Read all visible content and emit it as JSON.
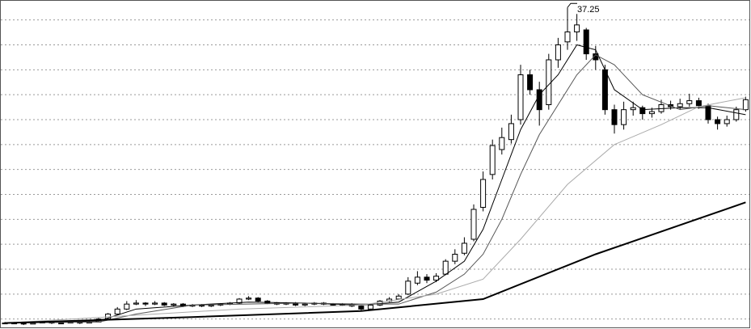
{
  "chart_data": {
    "type": "candlestick",
    "ylim": [
      5,
      38
    ],
    "yticks": [
      36,
      33.5,
      31,
      28.5,
      26,
      23.5,
      21,
      18.5,
      16,
      13.5,
      11,
      8.5,
      6
    ],
    "grid": true,
    "up_color": "#ffffff",
    "down_color": "#000000",
    "edge_color": "#000000",
    "ohlc": [
      [
        5.6,
        5.7,
        5.5,
        5.6
      ],
      [
        5.6,
        5.7,
        5.5,
        5.6
      ],
      [
        5.6,
        5.6,
        5.4,
        5.5
      ],
      [
        5.5,
        5.7,
        5.5,
        5.6
      ],
      [
        5.6,
        5.8,
        5.6,
        5.7
      ],
      [
        5.7,
        5.7,
        5.5,
        5.6
      ],
      [
        5.6,
        5.7,
        5.5,
        5.6
      ],
      [
        5.6,
        5.8,
        5.6,
        5.7
      ],
      [
        5.7,
        5.7,
        5.5,
        5.6
      ],
      [
        5.6,
        5.8,
        5.6,
        5.7
      ],
      [
        5.7,
        6.1,
        5.7,
        6.0
      ],
      [
        6.0,
        6.6,
        5.9,
        6.5
      ],
      [
        6.5,
        7.2,
        6.4,
        7.0
      ],
      [
        7.0,
        7.8,
        6.9,
        7.5
      ],
      [
        7.5,
        7.9,
        7.4,
        7.6
      ],
      [
        7.6,
        7.7,
        7.3,
        7.5
      ],
      [
        7.5,
        7.8,
        7.4,
        7.6
      ],
      [
        7.6,
        7.7,
        7.3,
        7.4
      ],
      [
        7.4,
        7.6,
        7.3,
        7.5
      ],
      [
        7.5,
        7.6,
        7.2,
        7.3
      ],
      [
        7.3,
        7.5,
        7.2,
        7.4
      ],
      [
        7.4,
        7.5,
        7.2,
        7.3
      ],
      [
        7.3,
        7.5,
        7.2,
        7.4
      ],
      [
        7.4,
        7.6,
        7.3,
        7.5
      ],
      [
        7.5,
        7.7,
        7.4,
        7.6
      ],
      [
        7.6,
        8.1,
        7.5,
        8.0
      ],
      [
        8.0,
        8.3,
        7.9,
        8.1
      ],
      [
        8.1,
        8.2,
        7.7,
        7.8
      ],
      [
        7.8,
        7.9,
        7.5,
        7.6
      ],
      [
        7.6,
        7.7,
        7.4,
        7.5
      ],
      [
        7.5,
        7.7,
        7.4,
        7.6
      ],
      [
        7.6,
        7.7,
        7.3,
        7.4
      ],
      [
        7.4,
        7.6,
        7.3,
        7.5
      ],
      [
        7.5,
        7.7,
        7.4,
        7.6
      ],
      [
        7.6,
        7.7,
        7.4,
        7.5
      ],
      [
        7.5,
        7.6,
        7.3,
        7.4
      ],
      [
        7.4,
        7.6,
        7.3,
        7.5
      ],
      [
        7.5,
        7.6,
        7.2,
        7.3
      ],
      [
        7.3,
        7.4,
        6.8,
        7.0
      ],
      [
        7.0,
        7.5,
        6.9,
        7.4
      ],
      [
        7.4,
        7.9,
        7.3,
        7.8
      ],
      [
        7.8,
        8.2,
        7.7,
        8.0
      ],
      [
        8.0,
        8.5,
        7.9,
        8.3
      ],
      [
        8.5,
        10.2,
        8.4,
        9.8
      ],
      [
        9.6,
        10.8,
        9.4,
        10.2
      ],
      [
        10.2,
        10.5,
        9.6,
        9.9
      ],
      [
        9.9,
        10.6,
        9.7,
        10.3
      ],
      [
        10.5,
        12.0,
        10.4,
        11.8
      ],
      [
        11.8,
        13.0,
        11.5,
        12.5
      ],
      [
        12.6,
        14.2,
        12.4,
        13.6
      ],
      [
        14.0,
        17.5,
        13.8,
        17.0
      ],
      [
        17.2,
        20.8,
        16.8,
        20.0
      ],
      [
        20.5,
        24.0,
        20.0,
        23.4
      ],
      [
        23.0,
        25.2,
        22.5,
        24.2
      ],
      [
        24.0,
        26.5,
        23.6,
        25.6
      ],
      [
        26.0,
        31.5,
        25.5,
        30.5
      ],
      [
        30.5,
        31.0,
        28.5,
        29.0
      ],
      [
        29.0,
        29.8,
        25.4,
        27.0
      ],
      [
        27.5,
        32.6,
        27.0,
        32.0
      ],
      [
        32.0,
        34.2,
        31.2,
        33.5
      ],
      [
        33.8,
        37.25,
        33.0,
        34.8
      ],
      [
        34.8,
        36.6,
        33.9,
        35.5
      ],
      [
        35.0,
        35.2,
        32.0,
        32.6
      ],
      [
        32.6,
        33.4,
        31.0,
        32.0
      ],
      [
        31.0,
        31.5,
        26.5,
        27.0
      ],
      [
        27.0,
        27.5,
        24.6,
        25.5
      ],
      [
        25.5,
        27.8,
        25.0,
        27.0
      ],
      [
        27.0,
        27.8,
        26.4,
        27.2
      ],
      [
        27.2,
        27.4,
        26.0,
        26.6
      ],
      [
        26.6,
        27.2,
        26.2,
        26.8
      ],
      [
        26.8,
        28.0,
        26.6,
        27.5
      ],
      [
        27.5,
        27.9,
        27.0,
        27.3
      ],
      [
        27.3,
        28.1,
        27.0,
        27.6
      ],
      [
        27.6,
        28.6,
        27.3,
        27.9
      ],
      [
        27.9,
        28.2,
        27.1,
        27.4
      ],
      [
        27.4,
        27.6,
        25.6,
        26.0
      ],
      [
        26.0,
        26.3,
        25.0,
        25.6
      ],
      [
        25.6,
        26.4,
        25.3,
        26.0
      ],
      [
        26.0,
        27.3,
        25.8,
        27.0
      ],
      [
        27.0,
        28.3,
        26.8,
        28.0
      ]
    ],
    "lines": [
      {
        "color": "#000000",
        "x": [
          0,
          10,
          14,
          20,
          26,
          32,
          38,
          42,
          46,
          49,
          51,
          53,
          55,
          57,
          59,
          61,
          63,
          65,
          68,
          72,
          75,
          79
        ],
        "values": [
          5.6,
          5.8,
          7.0,
          7.4,
          7.7,
          7.6,
          7.4,
          7.7,
          9.8,
          11.8,
          15.0,
          20.0,
          25.0,
          28.5,
          30.5,
          33.5,
          33.0,
          29.0,
          27.0,
          27.2,
          27.2,
          26.5
        ]
      },
      {
        "color": "#555555",
        "x": [
          0,
          10,
          14,
          20,
          26,
          32,
          38,
          42,
          46,
          49,
          51,
          53,
          55,
          57,
          59,
          61,
          63,
          65,
          68,
          72,
          75,
          79
        ],
        "values": [
          5.6,
          5.7,
          6.5,
          7.4,
          7.5,
          7.6,
          7.5,
          7.5,
          8.7,
          10.5,
          12.5,
          16.0,
          20.5,
          24.5,
          27.5,
          30.5,
          32.5,
          31.5,
          28.5,
          27.0,
          27.4,
          27.0
        ]
      },
      {
        "color": "#aaaaaa",
        "x": [
          0,
          25,
          38,
          46,
          51,
          55,
          60,
          65,
          70,
          74,
          79
        ],
        "values": [
          5.6,
          7.0,
          7.4,
          8.5,
          10,
          14,
          19.5,
          23.5,
          25.5,
          27.3,
          28.2
        ]
      },
      {
        "color": "#000000",
        "width": 2,
        "x": [
          0,
          20,
          38,
          51,
          63,
          79
        ],
        "values": [
          5.6,
          6.2,
          6.8,
          8.0,
          12.5,
          17.7
        ]
      }
    ]
  }
}
